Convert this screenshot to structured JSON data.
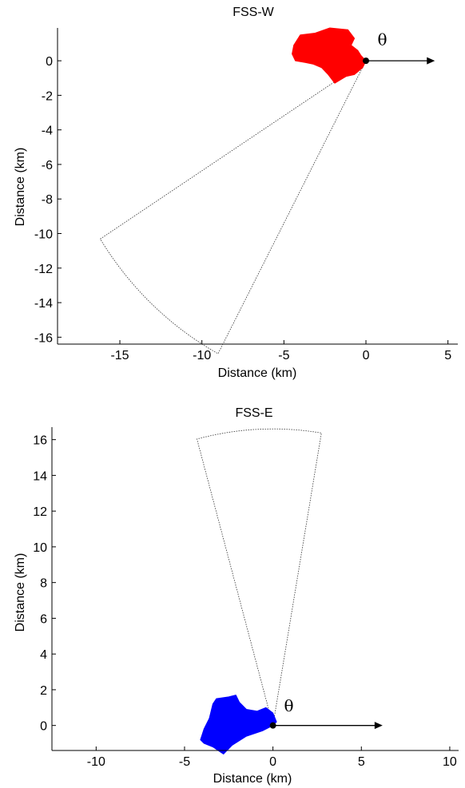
{
  "chart_data": [
    {
      "type": "scatter",
      "title": "FSS-W",
      "xlabel": "Distance (km)",
      "ylabel": "Distance (km)",
      "xlim": [
        -18.8,
        5.6
      ],
      "ylim": [
        -16.4,
        1.9
      ],
      "xticks": [
        -15,
        -10,
        -5,
        0,
        5
      ],
      "yticks": [
        0,
        -2,
        -4,
        -6,
        -8,
        -10,
        -12,
        -14,
        -16
      ],
      "origin": [
        0,
        0
      ],
      "arrow_end": [
        4.2,
        0
      ],
      "theta_label": "θ",
      "theta_at": [
        1.0,
        0.9
      ],
      "shape": {
        "color": "#ff0000",
        "outline": [
          [
            -4.4,
            0.9
          ],
          [
            -4.0,
            1.5
          ],
          [
            -3.1,
            1.6
          ],
          [
            -2.2,
            1.9
          ],
          [
            -1.1,
            1.8
          ],
          [
            -0.7,
            1.3
          ],
          [
            -0.9,
            0.9
          ],
          [
            -0.5,
            0.6
          ],
          [
            -0.3,
            0.3
          ],
          [
            0.0,
            0.0
          ],
          [
            -0.2,
            -0.4
          ],
          [
            -0.7,
            -0.8
          ],
          [
            -1.2,
            -0.9
          ],
          [
            -1.9,
            -1.3
          ],
          [
            -2.3,
            -0.8
          ],
          [
            -2.7,
            -0.4
          ],
          [
            -3.2,
            -0.2
          ],
          [
            -3.7,
            -0.1
          ],
          [
            -4.3,
            0.0
          ],
          [
            -4.5,
            0.4
          ]
        ]
      },
      "sector": {
        "r_inner": 0,
        "r_outer": 19.2,
        "theta_start_deg": 212.5,
        "theta_end_deg": 242.0
      }
    },
    {
      "type": "scatter",
      "title": "FSS-E",
      "xlabel": "Distance (km)",
      "ylabel": "Distance (km)",
      "xlim": [
        -12.5,
        10.5
      ],
      "ylim": [
        -1.4,
        16.7
      ],
      "xticks": [
        -10,
        -5,
        0,
        5,
        10
      ],
      "yticks": [
        0,
        2,
        4,
        6,
        8,
        10,
        12,
        14,
        16
      ],
      "origin": [
        0,
        0
      ],
      "arrow_end": [
        6.2,
        0
      ],
      "theta_label": "θ",
      "theta_at": [
        0.9,
        0.8
      ],
      "shape": {
        "color": "#0000ff",
        "outline": [
          [
            -4.1,
            -0.8
          ],
          [
            -3.9,
            -0.2
          ],
          [
            -3.6,
            0.4
          ],
          [
            -3.4,
            1.2
          ],
          [
            -3.2,
            1.5
          ],
          [
            -2.5,
            1.6
          ],
          [
            -2.1,
            1.7
          ],
          [
            -1.9,
            1.3
          ],
          [
            -1.5,
            0.9
          ],
          [
            -0.9,
            0.8
          ],
          [
            -0.4,
            1.0
          ],
          [
            0.0,
            0.7
          ],
          [
            0.2,
            0.2
          ],
          [
            0.0,
            0.0
          ],
          [
            -0.6,
            -0.3
          ],
          [
            -1.5,
            -0.6
          ],
          [
            -2.3,
            -1.1
          ],
          [
            -2.8,
            -1.6
          ],
          [
            -3.4,
            -1.2
          ],
          [
            -3.9,
            -1.0
          ]
        ]
      },
      "sector": {
        "r_inner": 0,
        "r_outer": 16.6,
        "theta_start_deg": 80.5,
        "theta_end_deg": 105.0
      }
    }
  ]
}
